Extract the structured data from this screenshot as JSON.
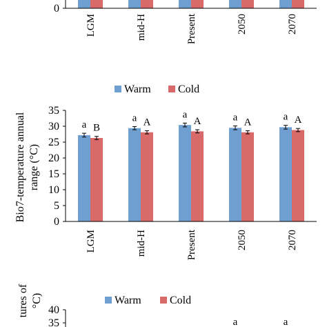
{
  "chart_data": [
    {
      "type": "bar",
      "partial": "bottom-only",
      "categories": [
        "LGM",
        "mid-H",
        "Present",
        "2050",
        "2070"
      ],
      "series": [
        {
          "name": "Warm",
          "color": "#6f9fd0"
        },
        {
          "name": "Cold",
          "color": "#d96a6a"
        }
      ],
      "yticks": [
        "0"
      ],
      "ylim": [
        0,
        null
      ]
    },
    {
      "type": "bar",
      "legend": "top-center",
      "ylabel": "Bio7-temperature annual  range (°C)",
      "ylim": [
        0,
        35
      ],
      "yticks": [
        "0",
        "5",
        "10",
        "15",
        "20",
        "25",
        "30",
        "35"
      ],
      "categories": [
        "LGM",
        "mid-H",
        "Present",
        "2050",
        "2070"
      ],
      "series": [
        {
          "name": "Warm",
          "color": "#6f9fd0",
          "values": [
            27.2,
            29.4,
            30.4,
            29.5,
            29.7
          ],
          "errors": [
            0.6,
            0.5,
            0.6,
            0.6,
            0.6
          ],
          "labels": [
            "a",
            "a",
            "a",
            "a",
            "a"
          ]
        },
        {
          "name": "Cold",
          "color": "#d96a6a",
          "values": [
            26.3,
            28.1,
            28.4,
            28.1,
            28.8
          ],
          "errors": [
            0.5,
            0.5,
            0.5,
            0.5,
            0.5
          ],
          "labels": [
            "B",
            "A",
            "A",
            "A",
            "A"
          ]
        }
      ]
    },
    {
      "type": "bar",
      "partial": "top-only",
      "legend": "top-center",
      "ylabel_fragment": "tures of\n°C)",
      "yticks": [
        "40",
        "35"
      ],
      "series": [
        {
          "name": "Warm",
          "color": "#6f9fd0"
        },
        {
          "name": "Cold",
          "color": "#d96a6a"
        }
      ],
      "visible_labels": [
        "a",
        "a"
      ]
    }
  ]
}
